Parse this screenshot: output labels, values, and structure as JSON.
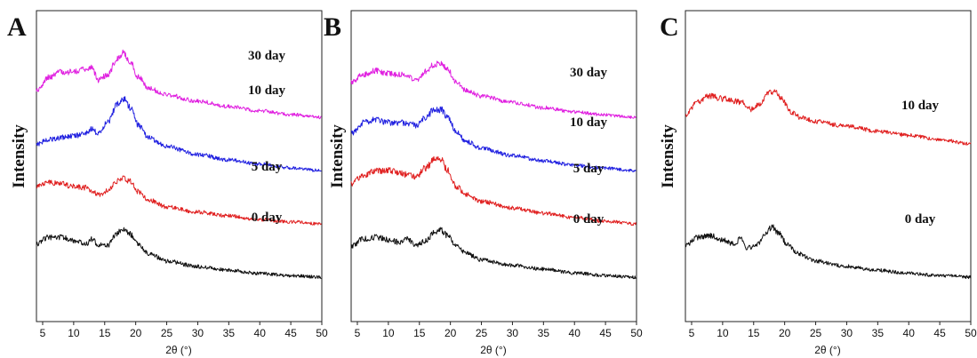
{
  "chart_data": [
    {
      "panel": "A",
      "type": "line",
      "ylabel": "Intensity",
      "xlabel": "2θ (°)",
      "xlim": [
        4,
        50
      ],
      "xticks": [
        5,
        10,
        15,
        20,
        25,
        30,
        35,
        40,
        45,
        50
      ],
      "grid": false,
      "series": [
        {
          "name": "30 day",
          "color": "#e020e0",
          "offset": 3,
          "x": [
            4,
            6,
            8,
            10,
            12,
            12.8,
            14,
            15.5,
            17,
            18,
            19,
            20.5,
            22,
            25,
            30,
            35,
            40,
            45,
            50
          ],
          "y": [
            0.5,
            0.75,
            0.85,
            0.85,
            0.9,
            0.95,
            0.7,
            0.8,
            1.1,
            1.2,
            1.05,
            0.75,
            0.55,
            0.42,
            0.3,
            0.2,
            0.12,
            0.05,
            0.0
          ]
        },
        {
          "name": "10 day",
          "color": "#2020e0",
          "offset": 2,
          "x": [
            4,
            6,
            8,
            10,
            12,
            12.8,
            14,
            15.5,
            17,
            18,
            19,
            20.5,
            22,
            25,
            30,
            35,
            40,
            45,
            50
          ],
          "y": [
            0.5,
            0.58,
            0.62,
            0.65,
            0.7,
            0.78,
            0.7,
            0.9,
            1.25,
            1.35,
            1.2,
            0.85,
            0.62,
            0.45,
            0.3,
            0.2,
            0.12,
            0.05,
            0.0
          ]
        },
        {
          "name": "5 day",
          "color": "#e02020",
          "offset": 1,
          "x": [
            4,
            6,
            8,
            10,
            12,
            12.8,
            14,
            15.5,
            17,
            18,
            19,
            20.5,
            22,
            25,
            30,
            35,
            40,
            45,
            50
          ],
          "y": [
            0.7,
            0.78,
            0.75,
            0.7,
            0.68,
            0.62,
            0.55,
            0.62,
            0.8,
            0.88,
            0.8,
            0.6,
            0.45,
            0.32,
            0.22,
            0.15,
            0.08,
            0.04,
            0.0
          ]
        },
        {
          "name": "0 day",
          "color": "#101010",
          "offset": 0,
          "x": [
            4,
            6,
            8,
            10,
            12,
            12.8,
            14,
            15.5,
            17,
            18,
            19,
            20.5,
            22,
            25,
            30,
            35,
            40,
            45,
            50
          ],
          "y": [
            0.62,
            0.75,
            0.75,
            0.68,
            0.62,
            0.72,
            0.6,
            0.6,
            0.82,
            0.92,
            0.82,
            0.6,
            0.45,
            0.3,
            0.2,
            0.13,
            0.07,
            0.03,
            0.0
          ]
        }
      ]
    },
    {
      "panel": "B",
      "type": "line",
      "ylabel": "Intensity",
      "xlabel": "2θ (°)",
      "xlim": [
        4,
        50
      ],
      "xticks": [
        5,
        10,
        15,
        20,
        25,
        30,
        35,
        40,
        45,
        50
      ],
      "grid": false,
      "series": [
        {
          "name": "30 day",
          "color": "#e020e0",
          "offset": 3,
          "x": [
            4,
            6,
            8,
            10,
            12,
            13,
            14.5,
            16,
            17.5,
            18.5,
            19.5,
            21,
            22.5,
            25,
            30,
            35,
            40,
            45,
            50
          ],
          "y": [
            0.65,
            0.8,
            0.88,
            0.82,
            0.8,
            0.78,
            0.7,
            0.85,
            1.0,
            1.0,
            0.9,
            0.65,
            0.5,
            0.4,
            0.28,
            0.18,
            0.1,
            0.04,
            0.0
          ]
        },
        {
          "name": "10 day",
          "color": "#2020e0",
          "offset": 2,
          "x": [
            4,
            6,
            8,
            10,
            12,
            13,
            14.5,
            16,
            17.5,
            18.5,
            19.5,
            21,
            22.5,
            25,
            30,
            35,
            40,
            45,
            50
          ],
          "y": [
            0.7,
            0.9,
            0.95,
            0.9,
            0.9,
            0.88,
            0.85,
            1.0,
            1.15,
            1.15,
            1.0,
            0.72,
            0.55,
            0.42,
            0.28,
            0.18,
            0.1,
            0.04,
            0.0
          ]
        },
        {
          "name": "5 day",
          "color": "#e02020",
          "offset": 1,
          "x": [
            4,
            6,
            8,
            10,
            12,
            13,
            14.5,
            16,
            17.5,
            18.5,
            19.5,
            21,
            22.5,
            25,
            30,
            35,
            40,
            45,
            50
          ],
          "y": [
            0.75,
            0.92,
            1.0,
            1.0,
            0.95,
            0.92,
            0.88,
            1.05,
            1.22,
            1.2,
            1.0,
            0.7,
            0.55,
            0.42,
            0.3,
            0.2,
            0.12,
            0.05,
            0.0
          ]
        },
        {
          "name": "0 day",
          "color": "#101010",
          "offset": 0,
          "x": [
            4,
            6,
            8,
            10,
            12,
            13,
            14.5,
            16,
            17.5,
            18.5,
            19.5,
            21,
            22.5,
            25,
            30,
            35,
            40,
            45,
            50
          ],
          "y": [
            0.58,
            0.72,
            0.75,
            0.7,
            0.65,
            0.72,
            0.6,
            0.68,
            0.85,
            0.88,
            0.78,
            0.58,
            0.45,
            0.32,
            0.22,
            0.15,
            0.08,
            0.03,
            0.0
          ]
        }
      ]
    },
    {
      "panel": "C",
      "type": "line",
      "ylabel": "Intensity",
      "xlabel": "2θ (°)",
      "xlim": [
        4,
        50
      ],
      "xticks": [
        5,
        10,
        15,
        20,
        25,
        30,
        35,
        40,
        45,
        50
      ],
      "grid": false,
      "series": [
        {
          "name": "10 day",
          "color": "#e02020",
          "offset": 2.5,
          "x": [
            4,
            6,
            8,
            10,
            12,
            13,
            14.5,
            16,
            17.5,
            18.5,
            19.5,
            21,
            22.5,
            25,
            30,
            35,
            40,
            45,
            50
          ],
          "y": [
            0.55,
            0.8,
            0.9,
            0.85,
            0.8,
            0.78,
            0.65,
            0.75,
            0.95,
            1.0,
            0.85,
            0.6,
            0.5,
            0.42,
            0.33,
            0.24,
            0.16,
            0.08,
            0.0
          ]
        },
        {
          "name": "0 day",
          "color": "#101010",
          "offset": 0,
          "x": [
            4,
            6,
            8,
            10,
            12,
            12.8,
            14,
            15.5,
            17,
            18,
            19,
            20.5,
            22,
            25,
            30,
            35,
            40,
            45,
            50
          ],
          "y": [
            0.6,
            0.75,
            0.78,
            0.7,
            0.62,
            0.72,
            0.55,
            0.6,
            0.82,
            0.95,
            0.82,
            0.6,
            0.45,
            0.3,
            0.2,
            0.13,
            0.07,
            0.03,
            0.0
          ]
        }
      ]
    }
  ],
  "panels": [
    {
      "letter": "A",
      "ylabel": "Intensity",
      "xlabel": "2θ (°)"
    },
    {
      "letter": "B",
      "ylabel": "Intensity",
      "xlabel": "2θ (°)"
    },
    {
      "letter": "C",
      "ylabel": "Intensity",
      "xlabel": "2θ (°)"
    }
  ]
}
